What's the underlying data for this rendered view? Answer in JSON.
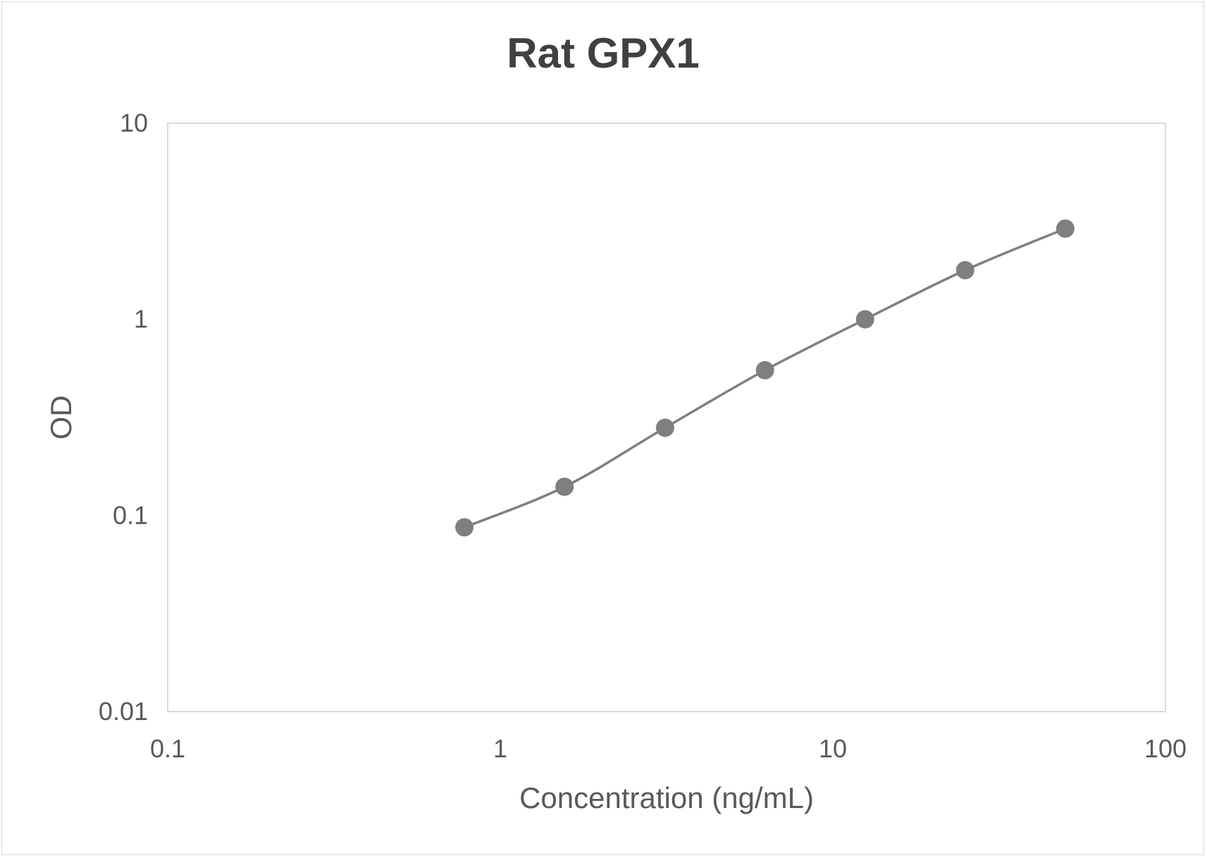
{
  "chart_data": {
    "type": "scatter",
    "title": "Rat GPX1",
    "xlabel": "Concentration (ng/mL)",
    "ylabel": "OD",
    "x_scale": "log",
    "y_scale": "log",
    "xlim": [
      0.1,
      100
    ],
    "ylim": [
      0.01,
      10
    ],
    "x_tick_labels": [
      "0.1",
      "1",
      "10",
      "100"
    ],
    "y_tick_labels": [
      "0.01",
      "0.1",
      "1",
      "10"
    ],
    "grid": false,
    "legend": "none",
    "line_style": "smooth",
    "colors": {
      "series": "#7f7f7f",
      "plot_border": "#d9d9d9",
      "text": "#595959",
      "title": "#404040"
    },
    "series": [
      {
        "x": [
          0.78,
          1.56,
          3.13,
          6.25,
          12.5,
          25,
          50
        ],
        "y": [
          0.087,
          0.14,
          0.28,
          0.55,
          1.0,
          1.78,
          2.9
        ]
      }
    ]
  }
}
